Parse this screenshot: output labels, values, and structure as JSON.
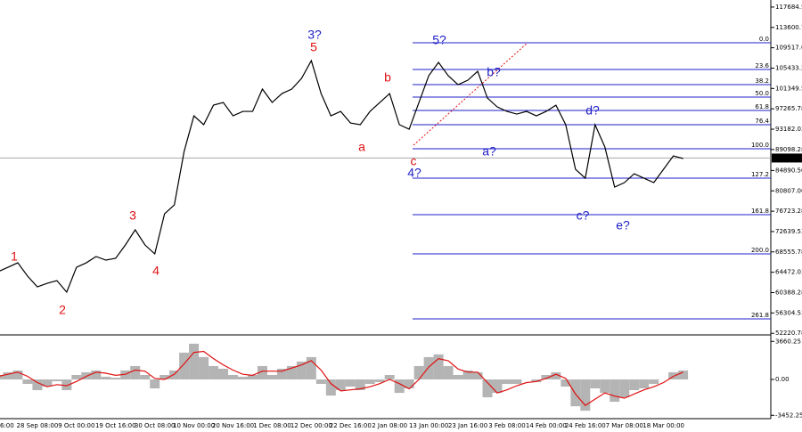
{
  "chart_data": [
    {
      "type": "line",
      "color": "#000000",
      "categories": [
        "6:00",
        null,
        null,
        null,
        "28 Sep 08:00",
        null,
        null,
        null,
        "9 Oct 00:00",
        null,
        null,
        null,
        "19 Oct 16:00",
        null,
        null,
        null,
        "30 Oct 08:00",
        null,
        null,
        null,
        "10 Nov 00:00",
        null,
        null,
        null,
        "20 Nov 16:00",
        null,
        null,
        null,
        "1 Dec 08:00",
        null,
        null,
        null,
        "12 Dec 00:00",
        null,
        null,
        null,
        "22 Dec 16:00",
        null,
        null,
        null,
        "2 Jan 08:00",
        null,
        null,
        null,
        "13 Jan 00:00",
        null,
        null,
        null,
        "23 Jan 16:00",
        null,
        null,
        null,
        "3 Feb 08:00",
        null,
        null,
        null,
        "14 Feb 00:00",
        null,
        null,
        null,
        "24 Feb 16:00",
        null,
        null,
        null,
        "7 Mar 08:00",
        null,
        null,
        null,
        "18 Mar 00:00",
        null,
        null
      ],
      "values": [
        64590,
        65480,
        66370,
        63690,
        61550,
        62260,
        62800,
        60480,
        65480,
        66370,
        67630,
        66910,
        67270,
        69950,
        72990,
        69950,
        68160,
        76200,
        77990,
        88710,
        95860,
        94080,
        98000,
        98540,
        95860,
        96750,
        96750,
        101230,
        98540,
        100330,
        101230,
        103370,
        106940,
        100330,
        95860,
        96750,
        94430,
        94080,
        96750,
        98540,
        100330,
        94080,
        93180,
        98540,
        103900,
        106580,
        103900,
        102110,
        103010,
        104800,
        99430,
        97650,
        96750,
        96220,
        96750,
        95860,
        96750,
        98000,
        94080,
        85140,
        83350,
        94080,
        89610,
        81560,
        82460,
        84240,
        83350,
        82460,
        85140,
        87820,
        87290
      ],
      "ylim": [
        51900,
        119100
      ],
      "yticks": [
        117684.54,
        113600.78,
        109517.03,
        105433.28,
        101349.53,
        97265.78,
        93182.03,
        89098.28,
        {
          "value": 84890.5,
          "label": "84890.50"
        },
        {
          "value": 80807,
          "label": "80807.00"
        },
        76723.28,
        72639.53,
        68555.78,
        64472.03,
        60388.28,
        56304.53,
        52220.78
      ],
      "last_price": 87390.09,
      "fib_color": "#1f1fc8",
      "fib_levels": [
        {
          "value": 110521,
          "label": "0.0"
        },
        {
          "value": 105160,
          "label": "23.6"
        },
        {
          "value": 102125,
          "label": "38.2"
        },
        {
          "value": 99620,
          "label": "50.0"
        },
        {
          "value": 96940,
          "label": "61.8"
        },
        {
          "value": 94080,
          "label": "76.4"
        },
        {
          "value": 89250,
          "label": "100.0"
        },
        {
          "value": 83350,
          "label": "127.2"
        },
        {
          "value": 76030,
          "label": "161.8"
        },
        {
          "value": 68160,
          "label": "200.0"
        },
        {
          "value": 55120,
          "label": "261.8"
        }
      ],
      "annotations": [
        {
          "text": "1",
          "color": "#e01010"
        },
        {
          "text": "2",
          "color": "#e01010"
        },
        {
          "text": "3",
          "color": "#e01010"
        },
        {
          "text": "4",
          "color": "#e01010"
        },
        {
          "text": "3?",
          "color": "#1f1fc8"
        },
        {
          "text": "5",
          "color": "#e01010"
        },
        {
          "text": "a",
          "color": "#e01010"
        },
        {
          "text": "b",
          "color": "#e01010"
        },
        {
          "text": "c",
          "color": "#e01010"
        },
        {
          "text": "4?",
          "color": "#1f1fc8"
        },
        {
          "text": "5?",
          "color": "#1f1fc8"
        },
        {
          "text": "a?",
          "color": "#1f1fc8"
        },
        {
          "text": "b?",
          "color": "#1f1fc8"
        },
        {
          "text": "c?",
          "color": "#1f1fc8"
        },
        {
          "text": "d?",
          "color": "#1f1fc8"
        },
        {
          "text": "e?",
          "color": "#1f1fc8"
        }
      ]
    },
    {
      "type": "bar",
      "color": "#b4b4b4",
      "signal_color": "#e01010",
      "values": [
        430,
        690,
        860,
        -430,
        -1030,
        -690,
        -170,
        -1030,
        430,
        690,
        860,
        260,
        170,
        860,
        1290,
        430,
        -860,
        430,
        860,
        2580,
        3440,
        2150,
        1290,
        1030,
        430,
        260,
        430,
        1290,
        430,
        1030,
        1290,
        1720,
        2150,
        -430,
        -1550,
        -1030,
        -690,
        -1030,
        -430,
        -260,
        430,
        -1290,
        -860,
        1290,
        2150,
        2410,
        1290,
        430,
        860,
        690,
        -1720,
        -1290,
        -430,
        -430,
        0,
        -260,
        430,
        690,
        -690,
        -2580,
        -3010,
        -860,
        -1290,
        -2150,
        -1720,
        -1030,
        -860,
        -430,
        0,
        690,
        860
      ],
      "signal": [
        300,
        500,
        700,
        300,
        -300,
        -700,
        -500,
        -600,
        -200,
        300,
        700,
        600,
        400,
        500,
        900,
        800,
        100,
        0,
        500,
        1500,
        2600,
        2700,
        2000,
        1400,
        900,
        500,
        400,
        800,
        800,
        800,
        1100,
        1400,
        1800,
        900,
        -400,
        -1100,
        -1000,
        -900,
        -700,
        -400,
        0,
        -400,
        -900,
        0,
        1200,
        2000,
        1800,
        1000,
        700,
        700,
        -300,
        -1300,
        -1000,
        -600,
        -300,
        -200,
        100,
        500,
        100,
        -1400,
        -2500,
        -1900,
        -1300,
        -1600,
        -1800,
        -1400,
        -1000,
        -700,
        -300,
        300,
        700
      ],
      "ylim": [
        -3771,
        4114
      ],
      "yticks": [
        3660.25,
        {
          "value": 0,
          "label": "0.00"
        },
        -3452.25
      ]
    }
  ]
}
